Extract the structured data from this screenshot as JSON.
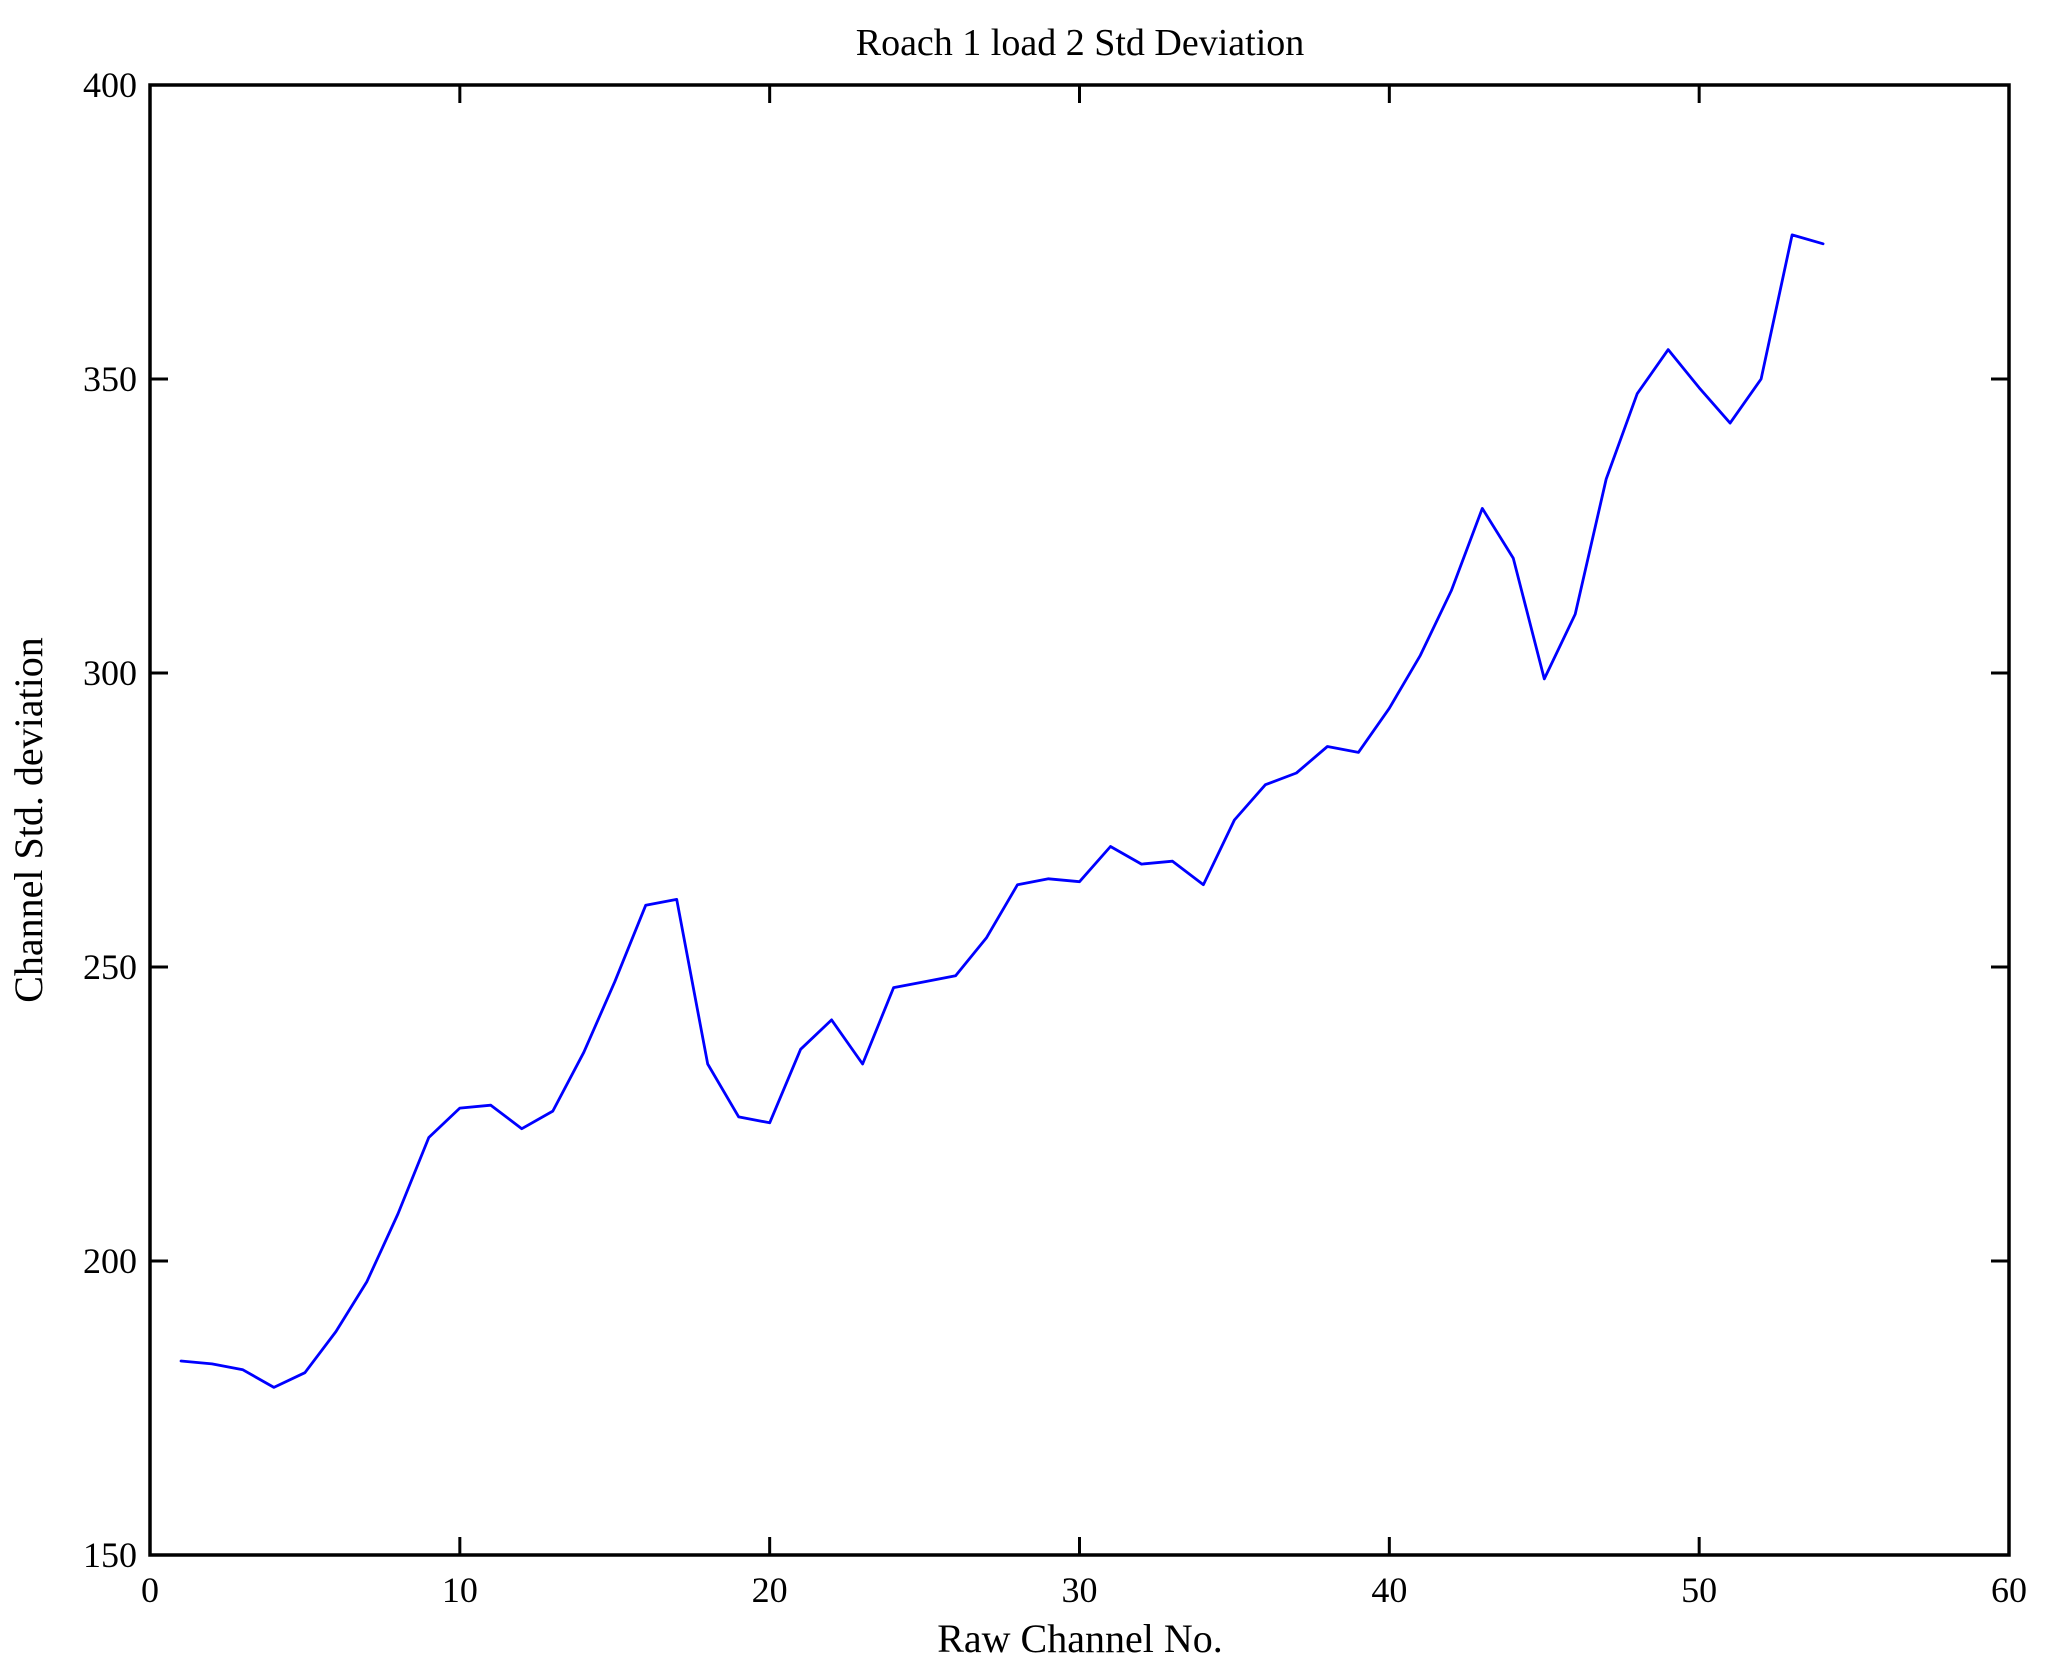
{
  "figure": {
    "title": "Roach 1 load 2 Std Deviation",
    "xlabel": "Raw Channel No.",
    "ylabel": "Channel Std. deviation"
  },
  "axes": {
    "x_tick_labels": [
      "0",
      "10",
      "20",
      "30",
      "40",
      "50",
      "60"
    ],
    "y_tick_labels": [
      "150",
      "200",
      "250",
      "300",
      "350",
      "400"
    ]
  },
  "style": {
    "line_color": "#0000ff",
    "frame_color": "#000000",
    "background": "#ffffff"
  },
  "chart_data": {
    "type": "line",
    "title": "Roach 1 load 2 Std Deviation",
    "xlabel": "Raw Channel No.",
    "ylabel": "Channel Std. deviation",
    "xlim": [
      0,
      60
    ],
    "ylim": [
      150,
      400
    ],
    "x_tick_values": [
      0,
      10,
      20,
      30,
      40,
      50,
      60
    ],
    "y_tick_values": [
      150,
      200,
      250,
      300,
      350,
      400
    ],
    "grid": false,
    "legend": "none",
    "series_name": "Channel Std. deviation vs Raw Channel No.",
    "line_color": "#0000ff",
    "x": [
      1,
      2,
      3,
      4,
      5,
      6,
      7,
      8,
      9,
      10,
      11,
      12,
      13,
      14,
      15,
      16,
      17,
      18,
      19,
      20,
      21,
      22,
      23,
      24,
      25,
      26,
      27,
      28,
      29,
      30,
      31,
      32,
      33,
      34,
      35,
      36,
      37,
      38,
      39,
      40,
      41,
      42,
      43,
      44,
      45,
      46,
      47,
      48,
      49,
      50,
      51,
      52,
      53,
      54
    ],
    "y": [
      183,
      182.5,
      181.5,
      178.5,
      181,
      188,
      196.5,
      208,
      221,
      226,
      226.5,
      222.5,
      225.5,
      235.5,
      247.5,
      260.5,
      261.5,
      233.5,
      224.5,
      223.5,
      236,
      241,
      233.5,
      246.5,
      247.5,
      248.5,
      255,
      264,
      265,
      264.5,
      270.5,
      267.5,
      268,
      264,
      275,
      281,
      283,
      287.5,
      286.5,
      294,
      303,
      314,
      328,
      319.5,
      299,
      310,
      333,
      347.5,
      355,
      348.5,
      342.5,
      350,
      374.5,
      373
    ]
  }
}
